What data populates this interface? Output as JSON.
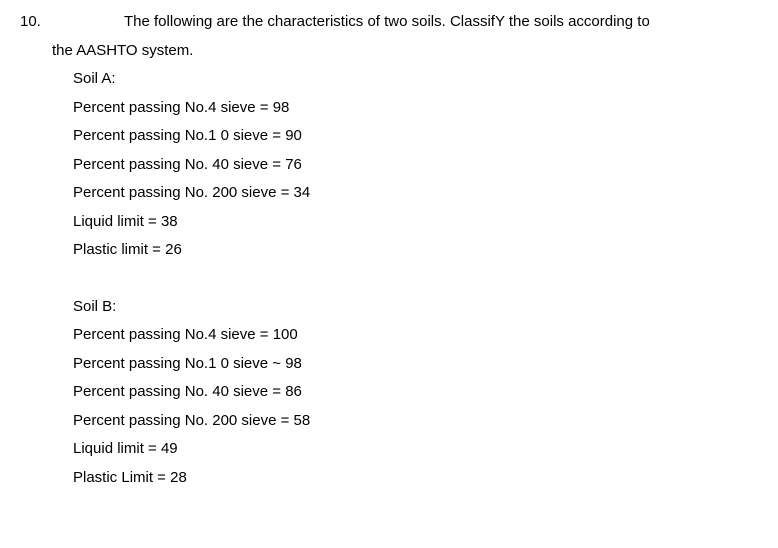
{
  "question": {
    "number": "10.",
    "gap_left": "﹑",
    "gap_right": "﹐",
    "intro_line1": "The following are the characteristics of two soils. ClassifY the soils according to",
    "intro_line2": "the AASHTO system."
  },
  "soilA": {
    "label": "Soil A:",
    "lines": [
      "Percent passing No.4 sieve = 98",
      "Percent passing No.1 0 sieve = 90",
      "Percent passing No. 40 sieve = 76",
      "Percent passing No. 200 sieve = 34",
      "Liquid limit = 38",
      "Plastic limit = 26"
    ]
  },
  "soilB": {
    "label": "Soil B:",
    "lines": [
      "Percent passing No.4 sieve = 100",
      "Percent passing No.1 0 sieve ~ 98",
      "Percent passing No. 40 sieve = 86",
      "Percent passing No. 200 sieve = 58",
      "Liquid limit = 49",
      "Plastic Limit = 28"
    ]
  }
}
